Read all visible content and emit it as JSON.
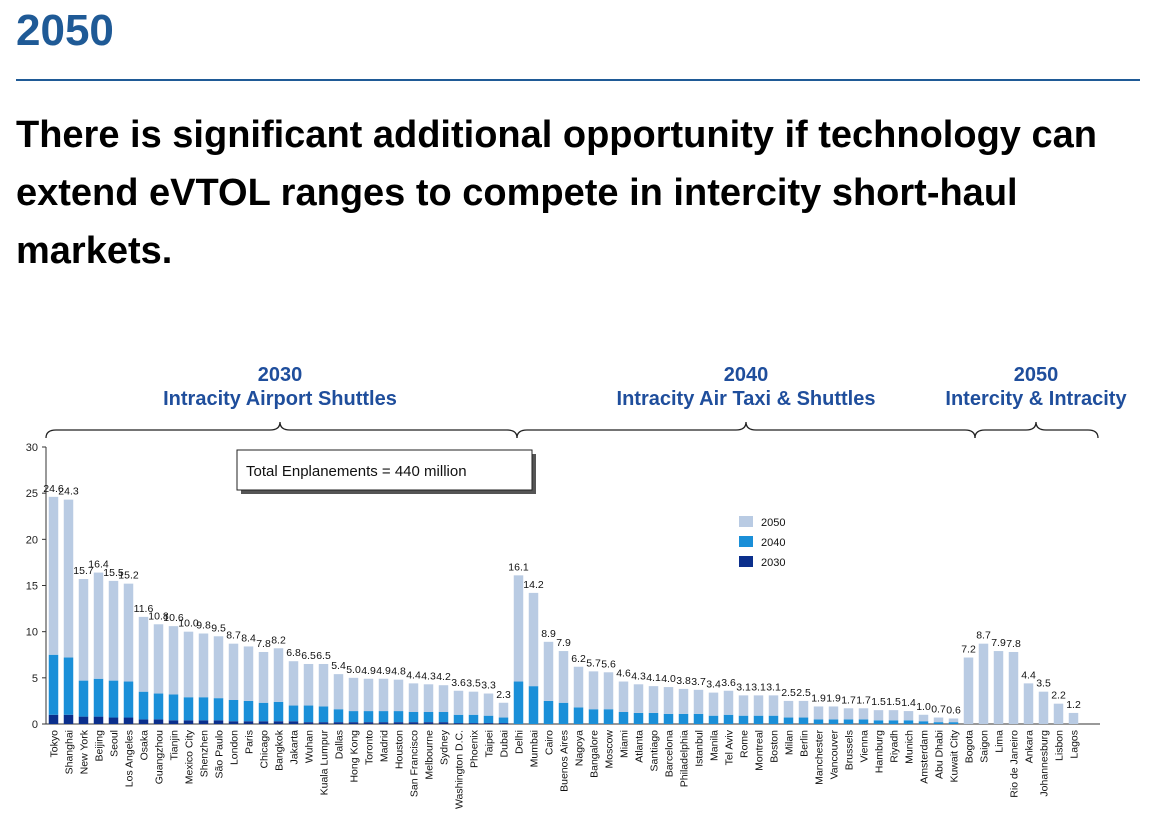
{
  "page": {
    "year_heading": "2050",
    "headline": "There is significant additional opportunity if technology can extend eVTOL ranges to compete in intercity short-haul markets."
  },
  "chart_data": {
    "type": "bar",
    "stacked": true,
    "ylim": [
      0,
      30
    ],
    "yticks": [
      0,
      5,
      10,
      15,
      20,
      25,
      30
    ],
    "annotation": "Total Enplanements = 440 million",
    "eras": [
      {
        "year": "2030",
        "label": "Intracity Airport Shuttles"
      },
      {
        "year": "2040",
        "label": "Intracity Air Taxi & Shuttles"
      },
      {
        "year": "2050",
        "label": "Intercity & Intracity"
      }
    ],
    "legend": [
      "2050",
      "2040",
      "2030"
    ],
    "colors": {
      "2050": "#b9cbe3",
      "2040": "#1a8fd8",
      "2030": "#0b2f8c"
    },
    "categories": [
      "Tokyo",
      "Shanghai",
      "New York",
      "Beijing",
      "Seoul",
      "Los Angeles",
      "Osaka",
      "Guangzhou",
      "Tianjin",
      "Mexico City",
      "Shenzhen",
      "São Paulo",
      "London",
      "Paris",
      "Chicago",
      "Bangkok",
      "Jakarta",
      "Wuhan",
      "Kuala Lumpur",
      "Dallas",
      "Hong Kong",
      "Toronto",
      "Madrid",
      "Houston",
      "San Francisco",
      "Melbourne",
      "Sydney",
      "Washington D.C.",
      "Phoenix",
      "Taipei",
      "Dubai",
      "Delhi",
      "Mumbai",
      "Cairo",
      "Buenos Aires",
      "Nagoya",
      "Bangalore",
      "Moscow",
      "Miami",
      "Atlanta",
      "Santiago",
      "Barcelona",
      "Philadelphia",
      "Istanbul",
      "Manila",
      "Tel Aviv",
      "Rome",
      "Montreal",
      "Boston",
      "Milan",
      "Berlin",
      "Manchester",
      "Vancouver",
      "Brussels",
      "Vienna",
      "Hamburg",
      "Riyadh",
      "Munich",
      "Amsterdam",
      "Abu Dhabi",
      "Kuwait City",
      "Bogota",
      "Saigon",
      "Lima",
      "Rio de Janeiro",
      "Ankara",
      "Johannesburg",
      "Lisbon",
      "Lagos"
    ],
    "totals": [
      24.6,
      24.3,
      15.7,
      16.4,
      15.5,
      15.2,
      11.6,
      10.8,
      10.6,
      10.0,
      9.8,
      9.5,
      8.7,
      8.4,
      7.8,
      8.2,
      6.8,
      6.5,
      6.5,
      5.4,
      5.0,
      4.9,
      4.9,
      4.8,
      4.4,
      4.3,
      4.2,
      3.6,
      3.5,
      3.3,
      2.3,
      16.1,
      14.2,
      8.9,
      7.9,
      6.2,
      5.7,
      5.6,
      4.6,
      4.3,
      4.1,
      4.0,
      3.8,
      3.7,
      3.4,
      3.6,
      3.1,
      3.1,
      3.1,
      2.5,
      2.5,
      1.9,
      1.9,
      1.7,
      1.7,
      1.5,
      1.5,
      1.4,
      1.0,
      0.7,
      0.6,
      7.2,
      8.7,
      7.9,
      7.8,
      4.4,
      3.5,
      2.2,
      1.2
    ],
    "series": [
      {
        "name": "2030",
        "values": [
          1.0,
          1.0,
          0.8,
          0.8,
          0.7,
          0.7,
          0.5,
          0.5,
          0.4,
          0.4,
          0.4,
          0.4,
          0.3,
          0.3,
          0.3,
          0.3,
          0.3,
          0.2,
          0.2,
          0.2,
          0.2,
          0.2,
          0.2,
          0.2,
          0.2,
          0.2,
          0.2,
          0.1,
          0.1,
          0.1,
          0.1,
          0,
          0,
          0,
          0,
          0,
          0,
          0,
          0,
          0,
          0,
          0,
          0,
          0,
          0,
          0,
          0,
          0,
          0,
          0,
          0,
          0,
          0,
          0,
          0,
          0,
          0,
          0,
          0,
          0,
          0,
          0,
          0,
          0,
          0,
          0,
          0,
          0,
          0
        ]
      },
      {
        "name": "2040",
        "values": [
          6.5,
          6.2,
          3.9,
          4.1,
          4.0,
          3.9,
          3.0,
          2.8,
          2.8,
          2.5,
          2.5,
          2.4,
          2.3,
          2.2,
          2.0,
          2.1,
          1.7,
          1.8,
          1.7,
          1.4,
          1.2,
          1.2,
          1.2,
          1.2,
          1.1,
          1.1,
          1.1,
          0.9,
          0.9,
          0.8,
          0.6,
          4.6,
          4.1,
          2.5,
          2.3,
          1.8,
          1.6,
          1.6,
          1.3,
          1.2,
          1.2,
          1.1,
          1.1,
          1.1,
          0.9,
          1.0,
          0.9,
          0.9,
          0.9,
          0.7,
          0.7,
          0.5,
          0.5,
          0.5,
          0.5,
          0.4,
          0.4,
          0.4,
          0.3,
          0.2,
          0.2,
          0,
          0,
          0,
          0,
          0,
          0,
          0,
          0
        ]
      },
      {
        "name": "2050",
        "values": [
          17.1,
          17.1,
          11.0,
          11.5,
          10.8,
          10.6,
          8.1,
          7.5,
          7.4,
          7.1,
          6.9,
          6.7,
          6.1,
          5.9,
          5.5,
          5.8,
          4.8,
          4.5,
          4.6,
          3.8,
          3.6,
          3.5,
          3.5,
          3.4,
          3.1,
          3.0,
          2.9,
          2.6,
          2.5,
          2.4,
          1.6,
          11.5,
          10.1,
          6.4,
          5.6,
          4.4,
          4.1,
          4.0,
          3.3,
          3.1,
          2.9,
          2.9,
          2.7,
          2.6,
          2.5,
          2.6,
          2.2,
          2.2,
          2.2,
          1.8,
          1.8,
          1.4,
          1.4,
          1.2,
          1.2,
          1.1,
          1.1,
          1.0,
          0.7,
          0.5,
          0.4,
          7.2,
          8.7,
          7.9,
          7.8,
          4.4,
          3.5,
          2.2,
          1.2
        ]
      }
    ]
  }
}
